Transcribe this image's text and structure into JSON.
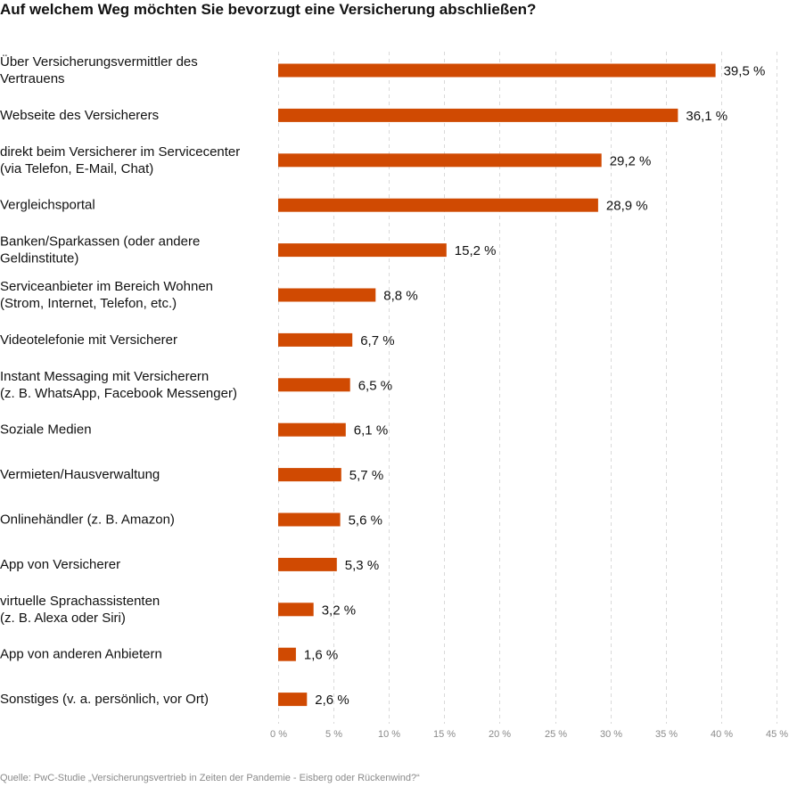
{
  "chart_data": {
    "type": "bar",
    "orientation": "horizontal",
    "title": "Auf welchem Weg möchten Sie bevorzugt eine Versicherung abschließen?",
    "categories": [
      [
        "Über Versicherungsvermittler des",
        "Vertrauens"
      ],
      [
        "Webseite des Versicherers"
      ],
      [
        "direkt beim Versicherer im Servicecenter",
        "(via Telefon, E-Mail, Chat)"
      ],
      [
        "Vergleichsportal"
      ],
      [
        "Banken/Sparkassen (oder andere",
        "Geldinstitute)"
      ],
      [
        "Serviceanbieter im Bereich Wohnen",
        "(Strom, Internet, Telefon, etc.)"
      ],
      [
        "Videotelefonie mit Versicherer"
      ],
      [
        "Instant Messaging mit Versicherern",
        "(z. B. WhatsApp, Facebook Messenger)"
      ],
      [
        "Soziale Medien"
      ],
      [
        "Vermieten/Hausverwaltung"
      ],
      [
        "Onlinehändler (z. B. Amazon)"
      ],
      [
        "App von Versicherer"
      ],
      [
        "virtuelle Sprachassistenten",
        "(z. B. Alexa oder Siri)"
      ],
      [
        "App von anderen Anbietern"
      ],
      [
        "Sonstiges (v. a. persönlich, vor Ort)"
      ]
    ],
    "values": [
      39.5,
      36.1,
      29.2,
      28.9,
      15.2,
      8.8,
      6.7,
      6.5,
      6.1,
      5.7,
      5.6,
      5.3,
      3.2,
      1.6,
      2.6
    ],
    "value_labels": [
      "39,5 %",
      "36,1 %",
      "29,2 %",
      "28,9 %",
      "15,2 %",
      "8,8 %",
      "6,7 %",
      "6,5 %",
      "6,1 %",
      "5,7 %",
      "5,6 %",
      "5,3 %",
      "3,2 %",
      "1,6 %",
      "2,6 %"
    ],
    "x_ticks": [
      0,
      5,
      10,
      15,
      20,
      25,
      30,
      35,
      40,
      45
    ],
    "x_tick_labels": [
      "0 %",
      "5 %",
      "10 %",
      "15 %",
      "20 %",
      "25 %",
      "30 %",
      "35 %",
      "40 %",
      "45 %"
    ],
    "xlim": [
      0,
      45
    ],
    "grid": true,
    "bar_color": "#d04a02",
    "grid_color": "#d9d9d9"
  },
  "source_note": "Quelle: PwC-Studie „Versicherungsvertrieb in Zeiten der Pandemie - Eisberg oder Rückenwind?“"
}
